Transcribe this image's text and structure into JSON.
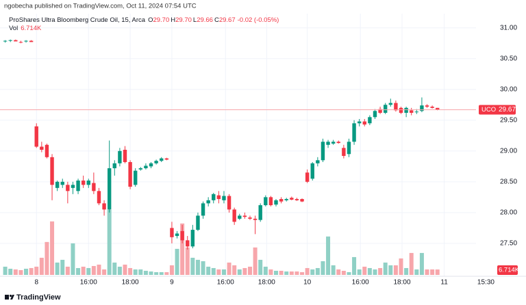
{
  "chart_data": {
    "type": "candlestick",
    "published": "ngobecha published on TradingView.com, Oct 11, 2024 07:54 UTC",
    "title": "ProShares Ultra Bloomberg Crude Oil, 15, Arca",
    "ohlc_legend": {
      "o_label": "O",
      "o": "29.70",
      "h_label": "H",
      "h": "29.70",
      "l_label": "L",
      "l": "29.66",
      "c_label": "C",
      "c": "29.67",
      "change": "-0.02 (-0.05%)"
    },
    "volume_name": "Vol",
    "volume_label": "6.714K",
    "symbol": "UCO",
    "footer": "TradingView",
    "up_color": "#089981",
    "down_color": "#f23645",
    "up_volume_color": "#8fd0c5",
    "down_volume_color": "#f7a6ab",
    "grid": true,
    "x": [
      0,
      1,
      2,
      3,
      4,
      5,
      6,
      7,
      8,
      9,
      10,
      11,
      12,
      13,
      14,
      15,
      16,
      17,
      18,
      19,
      20,
      21,
      22,
      23,
      24,
      25,
      26,
      27,
      28,
      29,
      30,
      31,
      32,
      33,
      34,
      35,
      36,
      37,
      38,
      39,
      40,
      41,
      42,
      43,
      44,
      45,
      46,
      47,
      48,
      49,
      50,
      51,
      52,
      53,
      54,
      55,
      56,
      57,
      58,
      59,
      60,
      61,
      62,
      63,
      64,
      65,
      66,
      67,
      68,
      69,
      70,
      71,
      72,
      73,
      74,
      75,
      76,
      77,
      78,
      79,
      80,
      81,
      82,
      83
    ],
    "open": [
      30.78,
      30.79,
      30.8,
      30.77,
      30.78,
      30.79,
      29.4,
      29.07,
      29.1,
      28.9,
      28.4,
      28.45,
      28.45,
      28.4,
      28.35,
      28.52,
      28.45,
      28.48,
      28.35,
      28.15,
      28.05,
      28.72,
      28.8,
      29.02,
      28.82,
      28.45,
      28.7,
      28.72,
      28.75,
      28.8,
      28.84,
      28.88,
      27.75,
      27.62,
      27.7,
      27.55,
      27.45,
      27.72,
      27.95,
      28.15,
      28.2,
      28.28,
      28.2,
      28.27,
      28.05,
      27.9,
      27.95,
      27.92,
      27.9,
      27.88,
      28.12,
      28.25,
      28.13,
      28.22,
      28.2,
      28.24,
      28.22,
      28.22,
      28.65,
      28.55,
      28.8,
      28.85,
      29.1,
      29.12,
      29.15,
      29.05,
      28.95,
      29.15,
      29.45,
      29.48,
      29.45,
      29.55,
      29.68,
      29.62,
      29.75,
      29.78,
      29.7,
      29.62,
      29.66,
      29.63,
      29.65,
      29.74,
      29.72,
      29.7
    ],
    "high": [
      30.8,
      30.81,
      30.81,
      30.79,
      30.8,
      30.8,
      29.45,
      29.15,
      29.12,
      28.95,
      28.52,
      28.55,
      28.5,
      28.5,
      28.55,
      28.6,
      28.55,
      28.65,
      28.4,
      28.2,
      29.17,
      28.85,
      29.05,
      29.08,
      28.85,
      28.72,
      28.74,
      28.8,
      28.82,
      28.86,
      28.9,
      28.89,
      27.85,
      27.7,
      27.8,
      27.62,
      27.8,
      28.0,
      28.18,
      28.25,
      28.32,
      28.35,
      28.35,
      28.3,
      28.08,
      27.98,
      28.0,
      27.95,
      27.95,
      28.15,
      28.28,
      28.27,
      28.22,
      28.25,
      28.24,
      28.26,
      28.24,
      28.23,
      28.7,
      28.82,
      28.9,
      29.2,
      29.18,
      29.18,
      29.17,
      29.1,
      29.2,
      29.5,
      29.52,
      29.52,
      29.58,
      29.68,
      29.72,
      29.78,
      29.85,
      29.82,
      29.72,
      29.72,
      29.7,
      29.68,
      29.87,
      29.76,
      29.74,
      29.7
    ],
    "low": [
      30.76,
      30.77,
      30.78,
      30.75,
      30.76,
      30.77,
      29.05,
      28.98,
      28.88,
      28.2,
      28.35,
      28.4,
      28.15,
      28.3,
      28.3,
      28.4,
      28.4,
      28.3,
      28.12,
      27.95,
      28.0,
      28.6,
      28.75,
      28.8,
      28.38,
      28.42,
      28.68,
      28.7,
      28.72,
      28.78,
      28.82,
      28.85,
      27.5,
      27.58,
      27.5,
      27.4,
      27.42,
      27.7,
      27.9,
      28.1,
      28.15,
      28.15,
      28.15,
      28.0,
      27.8,
      27.88,
      27.9,
      27.88,
      27.65,
      27.85,
      28.1,
      28.1,
      28.1,
      28.15,
      28.18,
      28.2,
      28.19,
      28.17,
      28.48,
      28.52,
      28.75,
      28.82,
      29.05,
      29.1,
      29.12,
      28.88,
      28.9,
      29.1,
      29.4,
      29.4,
      29.42,
      29.52,
      29.6,
      29.6,
      29.72,
      29.64,
      29.6,
      29.55,
      29.58,
      29.6,
      29.63,
      29.7,
      29.69,
      29.66
    ],
    "close": [
      30.79,
      30.8,
      30.78,
      30.76,
      30.79,
      30.77,
      29.07,
      29.02,
      28.9,
      28.45,
      28.5,
      28.5,
      28.35,
      28.45,
      28.52,
      28.45,
      28.52,
      28.35,
      28.15,
      28.05,
      28.72,
      28.8,
      29.0,
      28.82,
      28.42,
      28.68,
      28.72,
      28.76,
      28.8,
      28.84,
      28.88,
      28.86,
      27.6,
      27.66,
      27.55,
      27.45,
      27.72,
      27.95,
      28.15,
      28.2,
      28.3,
      28.22,
      28.27,
      28.05,
      27.85,
      27.95,
      27.93,
      27.9,
      27.88,
      28.12,
      28.25,
      28.12,
      28.2,
      28.18,
      28.22,
      28.21,
      28.2,
      28.18,
      28.5,
      28.8,
      28.85,
      29.15,
      29.15,
      29.15,
      29.13,
      28.92,
      29.15,
      29.45,
      29.48,
      29.43,
      29.55,
      29.65,
      29.62,
      29.75,
      29.78,
      29.66,
      29.62,
      29.7,
      29.62,
      29.64,
      29.74,
      29.72,
      29.7,
      29.67
    ],
    "volume": [
      10200,
      7650,
      6800,
      5950,
      7650,
      8500,
      10200,
      21250,
      40800,
      66300,
      15300,
      18700,
      10200,
      39100,
      8500,
      10200,
      8500,
      11050,
      12750,
      6800,
      80750,
      15300,
      10200,
      12750,
      8500,
      6800,
      6800,
      5100,
      4250,
      3400,
      3400,
      3400,
      11900,
      32300,
      63750,
      34000,
      21250,
      18700,
      17000,
      10200,
      8500,
      6800,
      6800,
      15300,
      11900,
      6800,
      8500,
      10200,
      34000,
      18700,
      10200,
      6800,
      5100,
      5100,
      4250,
      4250,
      4250,
      3400,
      8500,
      6800,
      8500,
      17000,
      47600,
      11900,
      6800,
      5100,
      3400,
      22100,
      6800,
      10200,
      8500,
      6800,
      8500,
      15300,
      11900,
      11900,
      20400,
      8500,
      27200,
      6800,
      27200,
      6800,
      6800,
      6714
    ],
    "volume_ylim": [
      0,
      100000
    ],
    "xlim": [
      -1,
      90.4
    ],
    "xticks": [
      {
        "value": 6,
        "label": "8"
      },
      {
        "value": 16,
        "label": "16:00"
      },
      {
        "value": 24,
        "label": "18:00"
      },
      {
        "value": 32,
        "label": "9"
      },
      {
        "value": 42.3,
        "label": "16:00"
      },
      {
        "value": 50.2,
        "label": "18:00"
      },
      {
        "value": 58,
        "label": "10"
      },
      {
        "value": 68.2,
        "label": "16:00"
      },
      {
        "value": 76.2,
        "label": "18:00"
      },
      {
        "value": 84.3,
        "label": "11"
      },
      {
        "value": 92.3,
        "label": "15:30"
      }
    ],
    "ylim": [
      27.01,
      31.23
    ],
    "yticks": [
      {
        "value": 27.5,
        "label": "27.50"
      },
      {
        "value": 28,
        "label": "28.00"
      },
      {
        "value": 28.5,
        "label": "28.50"
      },
      {
        "value": 29,
        "label": "29.00"
      },
      {
        "value": 29.5,
        "label": "29.50"
      },
      {
        "value": 30,
        "label": "30.00"
      },
      {
        "value": 30.5,
        "label": "30.50"
      },
      {
        "value": 31,
        "label": "31.00"
      }
    ]
  }
}
